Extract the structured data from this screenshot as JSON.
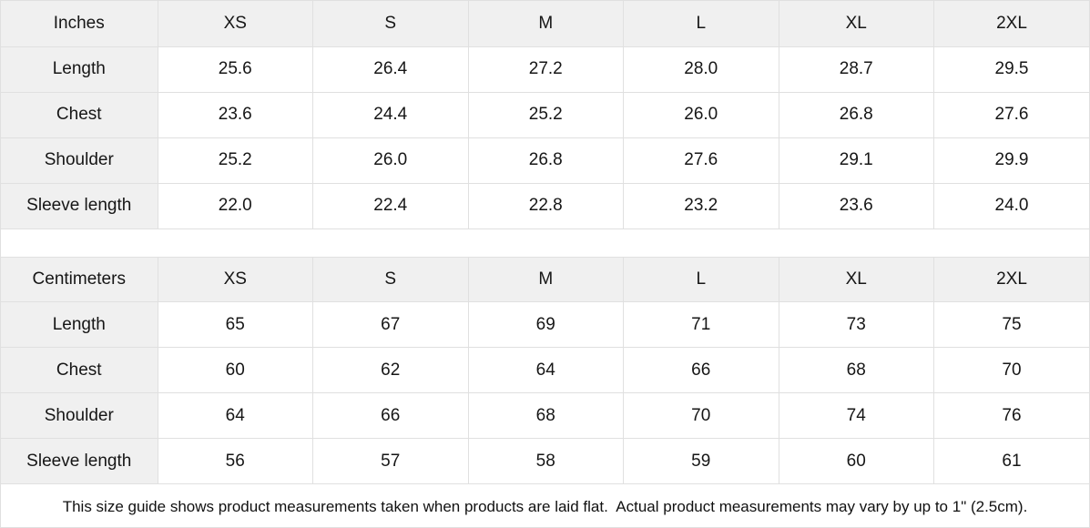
{
  "sizes": [
    "XS",
    "S",
    "M",
    "L",
    "XL",
    "2XL"
  ],
  "inches": {
    "unit_label": "Inches",
    "rows": [
      {
        "label": "Length",
        "values": [
          "25.6",
          "26.4",
          "27.2",
          "28.0",
          "28.7",
          "29.5"
        ]
      },
      {
        "label": "Chest",
        "values": [
          "23.6",
          "24.4",
          "25.2",
          "26.0",
          "26.8",
          "27.6"
        ]
      },
      {
        "label": "Shoulder",
        "values": [
          "25.2",
          "26.0",
          "26.8",
          "27.6",
          "29.1",
          "29.9"
        ]
      },
      {
        "label": "Sleeve length",
        "values": [
          "22.0",
          "22.4",
          "22.8",
          "23.2",
          "23.6",
          "24.0"
        ]
      }
    ]
  },
  "centimeters": {
    "unit_label": "Centimeters",
    "rows": [
      {
        "label": "Length",
        "values": [
          "65",
          "67",
          "69",
          "71",
          "73",
          "75"
        ]
      },
      {
        "label": "Chest",
        "values": [
          "60",
          "62",
          "64",
          "66",
          "68",
          "70"
        ]
      },
      {
        "label": "Shoulder",
        "values": [
          "64",
          "66",
          "68",
          "70",
          "74",
          "76"
        ]
      },
      {
        "label": "Sleeve length",
        "values": [
          "56",
          "57",
          "58",
          "59",
          "60",
          "61"
        ]
      }
    ]
  },
  "footer": {
    "note": "This size guide shows product measurements taken when products are laid flat.  Actual product measurements may vary by up to 1\" (2.5cm)."
  },
  "colors": {
    "header_bg": "#f0f0f0",
    "border": "#e0e0e0",
    "text": "#161616"
  }
}
